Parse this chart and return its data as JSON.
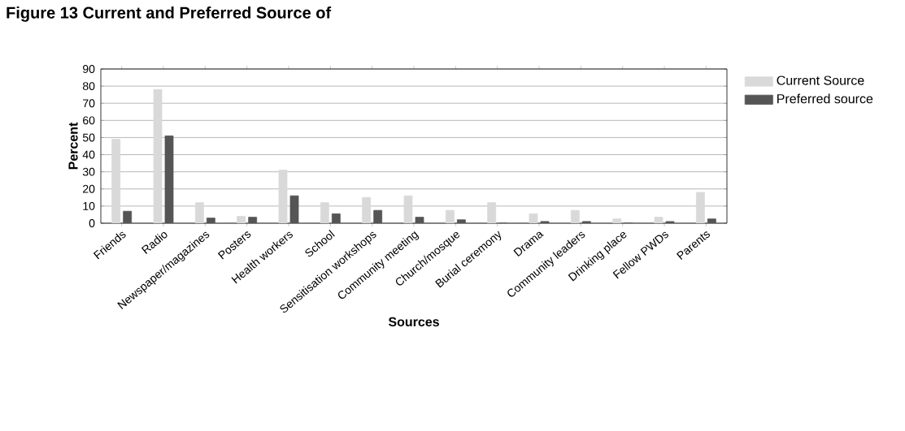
{
  "chart_data": {
    "type": "bar",
    "title": "Figure 13 Current and Preferred Source of",
    "xlabel": "Sources",
    "ylabel": "Percent",
    "categories": [
      "Friends",
      "Radio",
      "Newspaper/magazines",
      "Posters",
      "Health workers",
      "School",
      "Sensitisation workshops",
      "Community meeting",
      "Church/mosque",
      "Burial ceremony",
      "Drama",
      "Community leaders",
      "Drinking place",
      "Fellow PWDs",
      "Parents"
    ],
    "series": [
      {
        "name": "Current  Source",
        "color": "#d9d9d9",
        "values": [
          49,
          78,
          12,
          4,
          31,
          12,
          15,
          16,
          7.5,
          12,
          5.5,
          7.5,
          2.5,
          3.5,
          18
        ]
      },
      {
        "name": "Preferred source",
        "color": "#555555",
        "values": [
          7,
          51,
          3,
          3.5,
          16,
          5.5,
          7.5,
          3.5,
          2,
          0,
          1,
          1,
          0,
          1,
          2.5
        ]
      }
    ],
    "ylim": [
      0,
      90
    ],
    "yticks": [
      0,
      10,
      20,
      30,
      40,
      50,
      60,
      70,
      80,
      90
    ],
    "grid": "y",
    "legend": "right"
  }
}
